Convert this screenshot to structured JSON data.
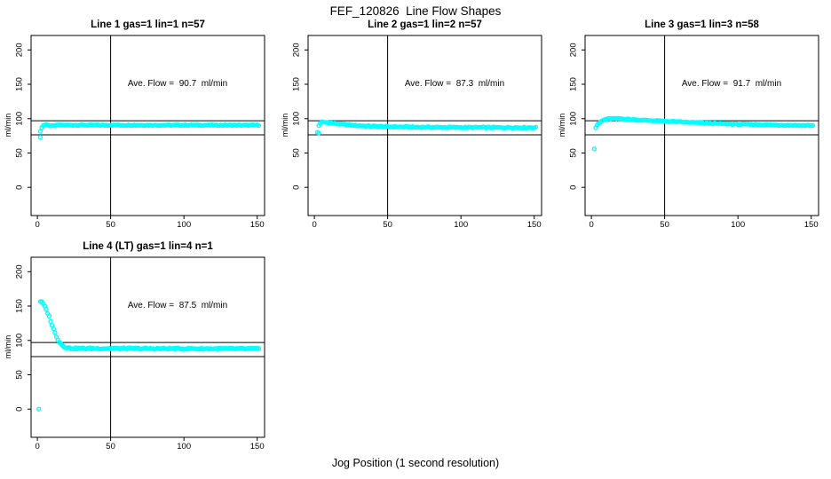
{
  "figure": {
    "title": "FEF_120826  Line Flow Shapes",
    "xlabel": "Jog Position (1 second resolution)",
    "background_color": "#ffffff",
    "axis_color": "#000000",
    "marker_color": "#00ffff"
  },
  "chart_data": [
    {
      "type": "scatter",
      "title": "Line 1 gas=1 lin=1 n=57",
      "annotation": "Ave. Flow =  90.7  ml/min",
      "ave_flow_ml_min": 90.7,
      "n": 57,
      "ylabel": "ml/min",
      "xlim": [
        -4.3,
        155
      ],
      "ylim": [
        -41,
        221
      ],
      "xticks": [
        0,
        50,
        100,
        150
      ],
      "yticks": [
        0,
        50,
        100,
        150,
        200
      ],
      "ref_lines_y": [
        97,
        76.5
      ],
      "ref_line_x": 50,
      "marker_color": "#00ffff",
      "noise": 0.6,
      "x_step": 1,
      "outliers": [
        [
          2,
          73
        ]
      ],
      "series_keypoints": [
        [
          2,
          82
        ],
        [
          3,
          87
        ],
        [
          4,
          90
        ],
        [
          5,
          91
        ],
        [
          7,
          91
        ],
        [
          9,
          89.5
        ],
        [
          11,
          89.7
        ],
        [
          14,
          90.6
        ],
        [
          151,
          90.5
        ]
      ]
    },
    {
      "type": "scatter",
      "title": "Line 2 gas=1 lin=2 n=57",
      "annotation": "Ave. Flow =  87.3  ml/min",
      "ave_flow_ml_min": 87.3,
      "n": 57,
      "ylabel": "ml/min",
      "xlim": [
        -4.3,
        155
      ],
      "ylim": [
        -41,
        221
      ],
      "xticks": [
        0,
        50,
        100,
        150
      ],
      "yticks": [
        0,
        50,
        100,
        150,
        200
      ],
      "ref_lines_y": [
        97,
        76.5
      ],
      "ref_line_x": 50,
      "marker_color": "#00ffff",
      "noise": 0.8,
      "x_step": 1,
      "outliers": [
        [
          2,
          80
        ],
        [
          3,
          79
        ]
      ],
      "series_keypoints": [
        [
          3,
          90
        ],
        [
          4,
          93.5
        ],
        [
          5,
          95
        ],
        [
          8,
          94.5
        ],
        [
          12,
          93.5
        ],
        [
          18,
          92
        ],
        [
          25,
          90.5
        ],
        [
          35,
          89.3
        ],
        [
          50,
          88.3
        ],
        [
          70,
          87.6
        ],
        [
          100,
          87.2
        ],
        [
          151,
          87
        ]
      ]
    },
    {
      "type": "scatter",
      "title": "Line 3 gas=1 lin=3 n=58",
      "annotation": "Ave. Flow =  91.7  ml/min",
      "ave_flow_ml_min": 91.7,
      "n": 58,
      "ylabel": "ml/min",
      "xlim": [
        -4.3,
        155
      ],
      "ylim": [
        -41,
        221
      ],
      "xticks": [
        0,
        50,
        100,
        150
      ],
      "yticks": [
        0,
        50,
        100,
        150,
        200
      ],
      "ref_lines_y": [
        97,
        76.5
      ],
      "ref_line_x": 50,
      "marker_color": "#00ffff",
      "noise": 0.7,
      "x_step": 1,
      "outliers": [
        [
          2,
          56
        ]
      ],
      "series_keypoints": [
        [
          3,
          87
        ],
        [
          4,
          90.5
        ],
        [
          5,
          93
        ],
        [
          7,
          96.5
        ],
        [
          9,
          98.5
        ],
        [
          12,
          100
        ],
        [
          20,
          100
        ],
        [
          30,
          98.3
        ],
        [
          45,
          96.8
        ],
        [
          60,
          95.3
        ],
        [
          80,
          93.3
        ],
        [
          100,
          92
        ],
        [
          125,
          90.8
        ],
        [
          151,
          90
        ]
      ]
    },
    {
      "type": "scatter",
      "title": "Line 4 (LT) gas=1 lin=4 n=1",
      "annotation": "Ave. Flow =  87.5  ml/min",
      "ave_flow_ml_min": 87.5,
      "n": 1,
      "ylabel": "ml/min",
      "xlim": [
        -4.3,
        155
      ],
      "ylim": [
        -41,
        221
      ],
      "xticks": [
        0,
        50,
        100,
        150
      ],
      "yticks": [
        0,
        50,
        100,
        150,
        200
      ],
      "ref_lines_y": [
        97,
        76.5
      ],
      "ref_line_x": 50,
      "marker_color": "#00ffff",
      "noise": 1.1,
      "x_step": 1,
      "outliers": [
        [
          1,
          0
        ]
      ],
      "series_keypoints": [
        [
          2,
          157
        ],
        [
          3,
          155.5
        ],
        [
          4,
          153
        ],
        [
          5,
          149.5
        ],
        [
          6,
          145
        ],
        [
          7,
          140
        ],
        [
          8,
          134.5
        ],
        [
          9,
          128.5
        ],
        [
          10,
          122.5
        ],
        [
          11,
          116.5
        ],
        [
          12,
          111
        ],
        [
          13,
          106
        ],
        [
          14,
          101.5
        ],
        [
          15,
          98
        ],
        [
          16,
          95.3
        ],
        [
          17,
          93.2
        ],
        [
          18,
          91.6
        ],
        [
          19,
          90.4
        ],
        [
          20,
          89.6
        ],
        [
          22,
          88.8
        ],
        [
          25,
          88.3
        ],
        [
          30,
          88.3
        ],
        [
          60,
          88.2
        ],
        [
          100,
          88
        ],
        [
          151,
          87.8
        ]
      ]
    }
  ]
}
